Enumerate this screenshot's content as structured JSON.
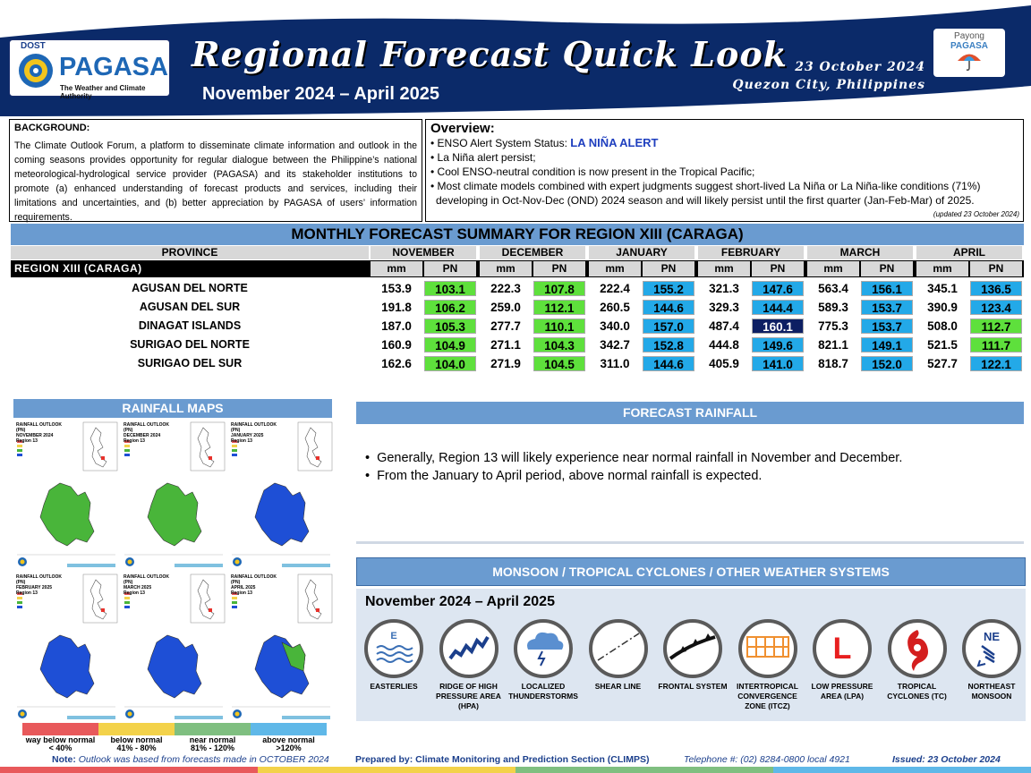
{
  "header": {
    "dost": "DOST",
    "agency": "PAGASA",
    "tagline": "The Weather and Climate Authority",
    "title": "Regional Forecast Quick Look",
    "period": "November 2024 – April 2025",
    "date": "23 October 2024",
    "place": "Quezon City, Philippines",
    "payong_line1": "Payong",
    "payong_line2": "PAGASA"
  },
  "background": {
    "heading": "BACKGROUND:",
    "text": "The Climate Outlook Forum, a platform to disseminate climate information and outlook in the coming seasons provides opportunity for regular dialogue between the Philippine’s national meteorological-hydrological service provider (PAGASA) and its stakeholder institutions to promote (a) enhanced understanding of forecast products and services, including their limitations and uncertainties, and (b) better appreciation by PAGASA of users’ information requirements."
  },
  "overview": {
    "heading": "Overview:",
    "enso_label": "• ENSO Alert System Status: ",
    "enso_status": "LA NIÑA ALERT",
    "bullets": [
      "• La Niña alert persist;",
      "• Cool ENSO-neutral condition is now present in the Tropical Pacific;",
      "• Most climate models combined with expert judgments suggest short-lived La Niña or La Niña-like conditions (71%)",
      "  developing in Oct-Nov-Dec (OND) 2024 season and will likely persist until the first quarter (Jan-Feb-Mar) of 2025."
    ],
    "updated": "(updated 23 October 2024)"
  },
  "table": {
    "title": "MONTHLY FORECAST SUMMARY FOR REGION XIII (CARAGA)",
    "province_header": "PROVINCE",
    "region_label": "REGION XIII (CARAGA)",
    "months": [
      "NOVEMBER",
      "DECEMBER",
      "JANUARY",
      "FEBRUARY",
      "MARCH",
      "APRIL"
    ],
    "sub_mm": "mm",
    "sub_pn": "PN",
    "rows": [
      {
        "name": "AGUSAN DEL NORTE",
        "mm": [
          "153.9",
          "222.3",
          "222.4",
          "321.3",
          "563.4",
          "345.1"
        ],
        "pn": [
          "103.1",
          "107.8",
          "155.2",
          "147.6",
          "156.1",
          "136.5"
        ]
      },
      {
        "name": "AGUSAN DEL SUR",
        "mm": [
          "191.8",
          "259.0",
          "260.5",
          "329.3",
          "589.3",
          "390.9"
        ],
        "pn": [
          "106.2",
          "112.1",
          "144.6",
          "144.4",
          "153.7",
          "123.4"
        ]
      },
      {
        "name": "DINAGAT ISLANDS",
        "mm": [
          "187.0",
          "277.7",
          "340.0",
          "487.4",
          "775.3",
          "508.0"
        ],
        "pn": [
          "105.3",
          "110.1",
          "157.0",
          "160.1",
          "153.7",
          "112.7"
        ]
      },
      {
        "name": "SURIGAO DEL NORTE",
        "mm": [
          "160.9",
          "271.1",
          "342.7",
          "444.8",
          "821.1",
          "521.5"
        ],
        "pn": [
          "104.9",
          "104.3",
          "152.8",
          "149.6",
          "149.1",
          "111.7"
        ]
      },
      {
        "name": "SURIGAO DEL SUR",
        "mm": [
          "162.6",
          "271.9",
          "311.0",
          "405.9",
          "818.7",
          "527.7"
        ],
        "pn": [
          "104.0",
          "104.5",
          "144.6",
          "141.0",
          "152.0",
          "122.1"
        ]
      }
    ],
    "colors": {
      "near_normal": "#5ee03c",
      "above_normal": "#23a9e8",
      "way_above": "#0d1f63"
    }
  },
  "maps": {
    "title": "RAINFALL MAPS",
    "items": [
      {
        "title": "RAINFALL OUTLOOK (PN)\nNOVEMBER 2024\nRegion 13",
        "fill": "#49b53a"
      },
      {
        "title": "RAINFALL OUTLOOK (PN)\nDECEMBER 2024\nRegion 13",
        "fill": "#49b53a"
      },
      {
        "title": "RAINFALL OUTLOOK (PN)\nJANUARY 2025\nRegion 13",
        "fill": "#1e4fd6"
      },
      {
        "title": "RAINFALL OUTLOOK (PN)\nFEBRUARY 2025\nRegion 13",
        "fill": "#1e4fd6"
      },
      {
        "title": "RAINFALL OUTLOOK (PN)\nMARCH 2025\nRegion 13",
        "fill": "#1e4fd6"
      },
      {
        "title": "RAINFALL OUTLOOK (PN)\nAPRIL 2025\nRegion 13",
        "fill": "#1e4fd6"
      }
    ],
    "legend": [
      {
        "label1": "way below normal",
        "label2": "< 40%",
        "color": "#e8595b"
      },
      {
        "label1": "below normal",
        "label2": "41% - 80%",
        "color": "#f3d24a"
      },
      {
        "label1": "near normal",
        "label2": "81% - 120%",
        "color": "#7fbf80"
      },
      {
        "label1": "above normal",
        "label2": ">120%",
        "color": "#5fb8e8"
      }
    ]
  },
  "forecast": {
    "title": "FORECAST RAINFALL",
    "bullets": [
      "Generally, Region 13 will likely experience near normal rainfall in November and December.",
      "From the January to April period, above normal rainfall is expected."
    ]
  },
  "monsoon": {
    "title": "MONSOON / TROPICAL CYCLONES / OTHER WEATHER SYSTEMS",
    "period": "November 2024 – April 2025",
    "systems": [
      {
        "label": "EASTERLIES",
        "icon": "easterlies-icon",
        "glyph": "E"
      },
      {
        "label": "RIDGE OF HIGH PRESSURE AREA (HPA)",
        "icon": "ridge-icon",
        "glyph": ""
      },
      {
        "label": "LOCALIZED THUNDERSTORMS",
        "icon": "thunderstorm-icon",
        "glyph": ""
      },
      {
        "label": "SHEAR LINE",
        "icon": "shear-line-icon",
        "glyph": ""
      },
      {
        "label": "FRONTAL SYSTEM",
        "icon": "frontal-system-icon",
        "glyph": ""
      },
      {
        "label": "INTERTROPICAL CONVERGENCE ZONE (ITCZ)",
        "icon": "itcz-icon",
        "glyph": ""
      },
      {
        "label": "LOW PRESSURE AREA (LPA)",
        "icon": "lpa-icon",
        "glyph": "L"
      },
      {
        "label": "TROPICAL CYCLONES (TC)",
        "icon": "tropical-cyclone-icon",
        "glyph": ""
      },
      {
        "label": "NORTHEAST MONSOON",
        "icon": "northeast-monsoon-icon",
        "glyph": "NE"
      }
    ]
  },
  "footer": {
    "note_label": "Note:",
    "note": " Outlook was based from forecasts made in OCTOBER 2024",
    "prepared": "Prepared by: Climate Monitoring and Prediction Section (CLIMPS)",
    "telephone": "Telephone #: (02) 8284-0800 local 4921",
    "issued": "Issued: 23 October 2024"
  }
}
